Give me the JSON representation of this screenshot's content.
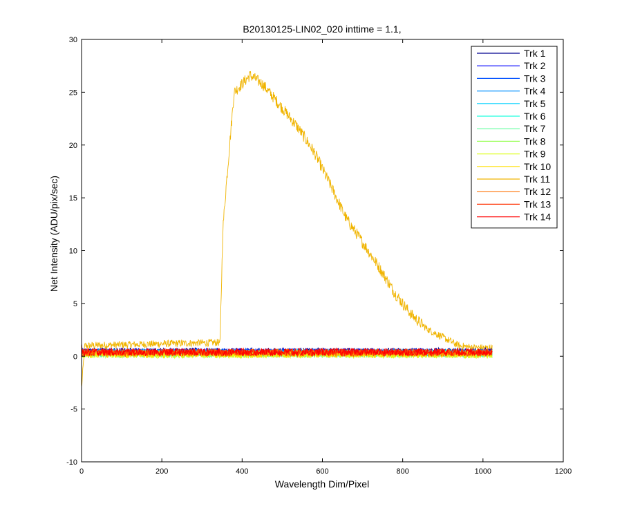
{
  "chart_data": {
    "type": "line",
    "title": "B20130125-LIN02_020 inttime = 1.1,",
    "xlabel": "Wavelength Dim/Pixel",
    "ylabel": "Net Intensity (ADU/pix/sec)",
    "xlim": [
      0,
      1200
    ],
    "ylim": [
      -10,
      30
    ],
    "xticks": [
      0,
      200,
      400,
      600,
      800,
      1000,
      1200
    ],
    "xtick_labels": [
      "0",
      "200",
      "400",
      "600",
      "800",
      "1000",
      "1200"
    ],
    "yticks": [
      -10,
      -5,
      0,
      5,
      10,
      15,
      20,
      25,
      30
    ],
    "ytick_labels": [
      "-10",
      "-5",
      "0",
      "5",
      "10",
      "15",
      "20",
      "25",
      "30"
    ],
    "grid": false,
    "legend_position": "top-right",
    "n_points": 1024,
    "series": [
      {
        "name": "Trk 1",
        "color": "#00008f",
        "baseline": 0.45,
        "noise": 0.35
      },
      {
        "name": "Trk 2",
        "color": "#0000ff",
        "baseline": 0.4,
        "noise": 0.35
      },
      {
        "name": "Trk 3",
        "color": "#0050ff",
        "baseline": 0.38,
        "noise": 0.35
      },
      {
        "name": "Trk 4",
        "color": "#0090ff",
        "baseline": 0.35,
        "noise": 0.35
      },
      {
        "name": "Trk 5",
        "color": "#00d0ff",
        "baseline": 0.3,
        "noise": 0.35
      },
      {
        "name": "Trk 6",
        "color": "#20ffdf",
        "baseline": 0.28,
        "noise": 0.35
      },
      {
        "name": "Trk 7",
        "color": "#60ff9f",
        "baseline": 0.25,
        "noise": 0.35
      },
      {
        "name": "Trk 8",
        "color": "#9fff60",
        "baseline": 0.2,
        "noise": 0.35
      },
      {
        "name": "Trk 9",
        "color": "#dfff20",
        "baseline": 0.15,
        "noise": 0.35
      },
      {
        "name": "Trk 10",
        "color": "#ffdf00",
        "baseline": 0.2,
        "noise": 0.35
      },
      {
        "name": "Trk 11",
        "color": "#f0b400",
        "baseline": 1.0,
        "noise": 0.35,
        "peak_points": [
          [
            0,
            -3.0
          ],
          [
            8,
            1.0
          ],
          [
            340,
            1.3
          ],
          [
            345,
            1.3
          ],
          [
            352,
            12.0
          ],
          [
            360,
            16.0
          ],
          [
            380,
            25.0
          ],
          [
            400,
            25.8
          ],
          [
            420,
            26.6
          ],
          [
            450,
            25.8
          ],
          [
            500,
            23.5
          ],
          [
            540,
            21.6
          ],
          [
            580,
            19.3
          ],
          [
            620,
            16.2
          ],
          [
            660,
            13.0
          ],
          [
            700,
            10.8
          ],
          [
            740,
            8.5
          ],
          [
            780,
            6.0
          ],
          [
            820,
            4.0
          ],
          [
            860,
            2.6
          ],
          [
            900,
            1.8
          ],
          [
            940,
            1.0
          ],
          [
            980,
            0.8
          ],
          [
            1023,
            0.8
          ]
        ]
      },
      {
        "name": "Trk 12",
        "color": "#ff7000",
        "baseline": 0.35,
        "noise": 0.35
      },
      {
        "name": "Trk 13",
        "color": "#ff3000",
        "baseline": 0.35,
        "noise": 0.35
      },
      {
        "name": "Trk 14",
        "color": "#ff0000",
        "baseline": 0.4,
        "noise": 0.35
      }
    ]
  }
}
